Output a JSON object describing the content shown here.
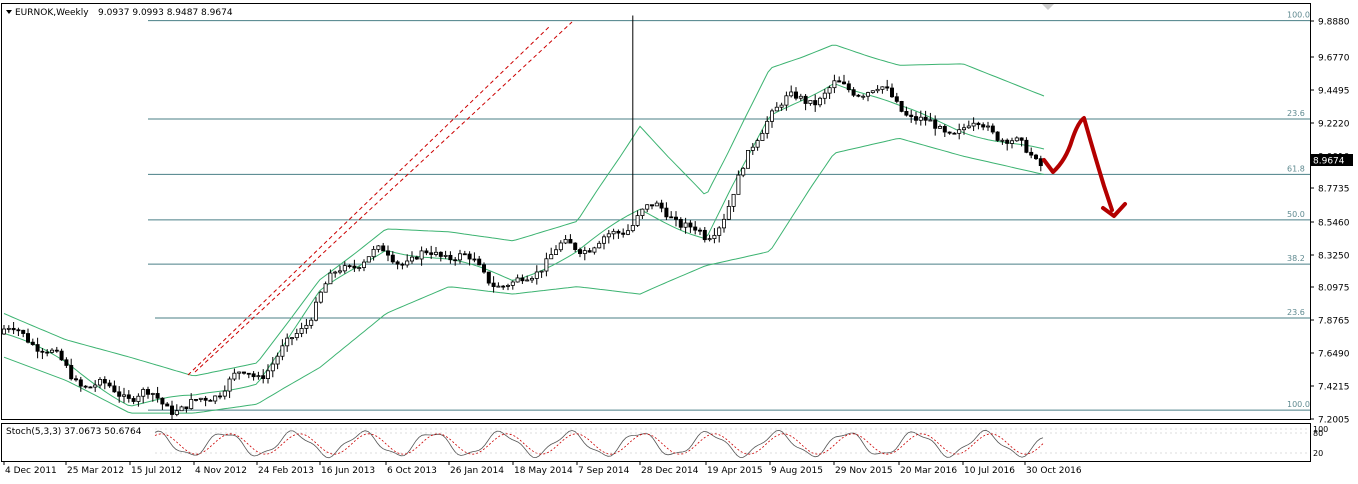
{
  "header": {
    "symbol": "EURNOK,Weekly",
    "ohlc": "9.0937 9.0993 8.9487 8.9674"
  },
  "colors": {
    "candle": "#000000",
    "band": "#3cb371",
    "fib": "#4a7f86",
    "trend": "#cc0000",
    "arrow": "#b30000",
    "price_label_bg": "#000000"
  },
  "chart_data": [
    {
      "type": "line",
      "name": "main",
      "price_axis": {
        "ticks": [
          "9.8880",
          "9.6770",
          "9.4495",
          "9.2220",
          "9.0010",
          "8.7735",
          "8.5460",
          "8.3250",
          "8.0975",
          "7.8765",
          "7.6490",
          "7.4215",
          "7.2005"
        ],
        "current_price": "8.9674"
      },
      "time_axis": {
        "ticks": [
          "4 Dec 2011",
          "25 Mar 2012",
          "15 Jul 2012",
          "4 Nov 2012",
          "24 Feb 2013",
          "16 Jun 2013",
          "6 Oct 2013",
          "26 Jan 2014",
          "18 May 2014",
          "7 Sep 2014",
          "28 Dec 2014",
          "19 Apr 2015",
          "9 Aug 2015",
          "29 Nov 2015",
          "20 Mar 2016",
          "10 Jul 2016",
          "30 Oct 2016"
        ]
      },
      "fib_levels": [
        {
          "label": "100.0",
          "price": 9.89
        },
        {
          "label": "23.6",
          "price": 9.25
        },
        {
          "label": "61.8",
          "price": 8.87
        },
        {
          "label": "50.0",
          "price": 8.56
        },
        {
          "label": "38.2",
          "price": 8.26
        },
        {
          "label": "23.6",
          "price": 7.89
        },
        {
          "label": "100.0",
          "price": 7.26
        }
      ],
      "price_path": [
        [
          "4 Dec 2011",
          7.78
        ],
        [
          "25 Mar 2012",
          7.58
        ],
        [
          "15 Jul 2012",
          7.3
        ],
        [
          "4 Nov 2012",
          7.34
        ],
        [
          "24 Feb 2013",
          7.46
        ],
        [
          "16 Jun 2013",
          8.05
        ],
        [
          "6 Oct 2013",
          8.38
        ],
        [
          "26 Jan 2014",
          8.28
        ],
        [
          "18 May 2014",
          8.15
        ],
        [
          "7 Sep 2014",
          8.35
        ],
        [
          "28 Dec 2014",
          8.62
        ],
        [
          "19 Apr 2015",
          8.45
        ],
        [
          "9 Aug 2015",
          9.25
        ],
        [
          "29 Nov 2015",
          9.52
        ],
        [
          "20 Mar 2016",
          9.32
        ],
        [
          "10 Jul 2016",
          9.18
        ],
        [
          "30 Oct 2016",
          9.06
        ]
      ],
      "band_upper": [
        [
          "4 Dec 2011",
          7.92
        ],
        [
          "25 Mar 2012",
          7.74
        ],
        [
          "15 Jul 2012",
          7.62
        ],
        [
          "4 Nov 2012",
          7.49
        ],
        [
          "24 Feb 2013",
          7.58
        ],
        [
          "16 Jun 2013",
          8.15
        ],
        [
          "6 Oct 2013",
          8.5
        ],
        [
          "26 Jan 2014",
          8.48
        ],
        [
          "18 May 2014",
          8.42
        ],
        [
          "7 Sep 2014",
          8.55
        ],
        [
          "28 Dec 2014",
          9.2
        ],
        [
          "19 Apr 2015",
          8.72
        ],
        [
          "9 Aug 2015",
          9.6
        ],
        [
          "29 Nov 2015",
          9.75
        ],
        [
          "20 Mar 2016",
          9.62
        ],
        [
          "10 Jul 2016",
          9.63
        ],
        [
          "30 Oct 2016",
          9.46
        ]
      ],
      "band_lower": [
        [
          "4 Dec 2011",
          7.62
        ],
        [
          "25 Mar 2012",
          7.46
        ],
        [
          "15 Jul 2012",
          7.24
        ],
        [
          "4 Nov 2012",
          7.24
        ],
        [
          "24 Feb 2013",
          7.3
        ],
        [
          "16 Jun 2013",
          7.55
        ],
        [
          "6 Oct 2013",
          7.92
        ],
        [
          "26 Jan 2014",
          8.1
        ],
        [
          "18 May 2014",
          8.05
        ],
        [
          "7 Sep 2014",
          8.1
        ],
        [
          "28 Dec 2014",
          8.05
        ],
        [
          "19 Apr 2015",
          8.25
        ],
        [
          "9 Aug 2015",
          8.35
        ],
        [
          "29 Nov 2015",
          9.02
        ],
        [
          "20 Mar 2016",
          9.12
        ],
        [
          "10 Jul 2016",
          9.0
        ],
        [
          "30 Oct 2016",
          8.9
        ]
      ]
    },
    {
      "type": "line",
      "name": "stochastic",
      "label": "Stoch(5,3,3) 37.0673 50.6764",
      "ticks": [
        "100",
        "80",
        "20"
      ]
    }
  ]
}
